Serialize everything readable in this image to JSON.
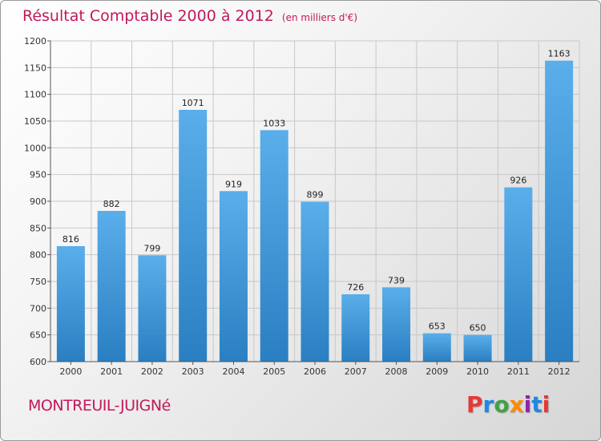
{
  "header": {
    "title": "Résultat Comptable 2000 à 2012",
    "subtitle": "(en milliers d'€)"
  },
  "footer": {
    "commune": "MONTREUIL-JUIGNé",
    "logo_text": "Proxiti"
  },
  "colors": {
    "title": "#c2185b",
    "bar_top": "#5aaeea",
    "bar_bottom": "#2a7fc2",
    "logo": [
      "#e53935",
      "#1e88e5",
      "#43a047",
      "#fb8c00",
      "#8e24aa",
      "#1e88e5",
      "#e53935"
    ]
  },
  "chart_data": {
    "type": "bar",
    "title": "Résultat Comptable 2000 à 2012",
    "categories": [
      "2000",
      "2001",
      "2002",
      "2003",
      "2004",
      "2005",
      "2006",
      "2007",
      "2008",
      "2009",
      "2010",
      "2011",
      "2012"
    ],
    "values": [
      816,
      882,
      799,
      1071,
      919,
      1033,
      899,
      726,
      739,
      653,
      650,
      926,
      1163
    ],
    "ylim": [
      600,
      1200
    ],
    "yticks": [
      600,
      650,
      700,
      750,
      800,
      850,
      900,
      950,
      1000,
      1050,
      1100,
      1150,
      1200
    ],
    "grid": true,
    "legend": "none"
  }
}
